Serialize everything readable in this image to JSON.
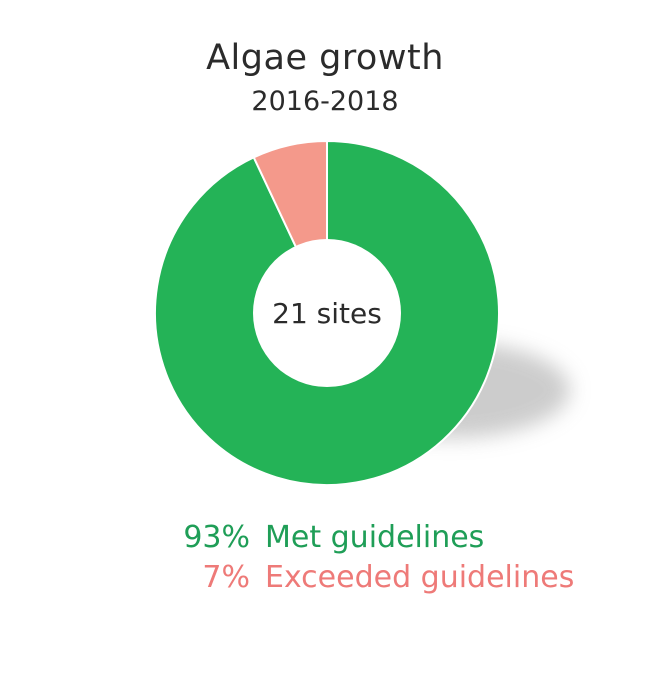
{
  "chart_data": {
    "type": "pie",
    "variant": "donut",
    "title": "Algae growth",
    "subtitle": "2016-2018",
    "center_label": "21 sites",
    "slices": [
      {
        "label": "Met guidelines",
        "value": 93,
        "display": "93%",
        "color": "#24b357",
        "text_color": "#1f9e57"
      },
      {
        "label": "Exceeded guidelines",
        "value": 7,
        "display": "7%",
        "color": "#f4998b",
        "text_color": "#ee7a78"
      }
    ],
    "legend_placement": "bottom"
  }
}
